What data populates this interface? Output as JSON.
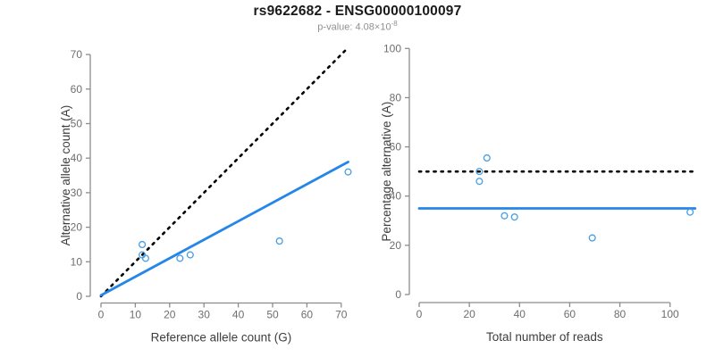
{
  "header": {
    "title": "rs9622682 - ENSG00000100097",
    "subtitle_prefix": "p-value: 4.08×10",
    "subtitle_exponent": "-8"
  },
  "colors": {
    "blue_line": "#2386E8",
    "blue_point": "#459DE4",
    "dotted_line": "#000000",
    "axis_line": "#8C8C8C",
    "tick_label": "#6E6E6E",
    "axis_title": "#3D3D3D",
    "title": "#1A1A1A",
    "subtitle": "#909090"
  },
  "chart_data": [
    {
      "type": "scatter",
      "xlabel": "Reference allele count (G)",
      "ylabel": "Alternative allele count (A)",
      "xlim": [
        0,
        72
      ],
      "ylim": [
        0,
        72
      ],
      "xticks": [
        0,
        10,
        20,
        30,
        40,
        50,
        60,
        70
      ],
      "yticks": [
        0,
        10,
        20,
        30,
        40,
        50,
        60,
        70
      ],
      "grid": false,
      "legend": null,
      "points": [
        [
          12,
          15
        ],
        [
          12,
          12
        ],
        [
          13,
          11
        ],
        [
          23,
          11
        ],
        [
          26,
          12
        ],
        [
          52,
          16
        ],
        [
          72,
          36
        ]
      ],
      "lines": [
        {
          "name": "identity-line",
          "style": "dotted",
          "color": "#000000",
          "x1": 0,
          "y1": 0,
          "x2": 71.5,
          "y2": 71.5
        },
        {
          "name": "fit-line",
          "style": "solid",
          "color": "#2386E8",
          "x1": 0,
          "y1": 0.3,
          "x2": 72,
          "y2": 38.9
        }
      ]
    },
    {
      "type": "scatter",
      "xlabel": "Total number of reads",
      "ylabel": "Percentage alternative (A)",
      "xlim": [
        0,
        110
      ],
      "ylim": [
        0,
        100
      ],
      "xticks": [
        0,
        20,
        40,
        60,
        80,
        100
      ],
      "yticks": [
        0,
        20,
        40,
        60,
        80,
        100
      ],
      "grid": false,
      "legend": null,
      "points": [
        [
          27,
          55.5
        ],
        [
          24,
          50
        ],
        [
          24,
          46
        ],
        [
          34,
          32
        ],
        [
          38,
          31.5
        ],
        [
          69,
          23
        ],
        [
          108,
          33.5
        ]
      ],
      "lines": [
        {
          "name": "null-50pct-line",
          "style": "dotted",
          "color": "#000000",
          "x1": 0,
          "y1": 50,
          "x2": 110,
          "y2": 50
        },
        {
          "name": "mean-pct-line",
          "style": "solid",
          "color": "#2386E8",
          "x1": 0,
          "y1": 35,
          "x2": 110,
          "y2": 35
        }
      ]
    }
  ]
}
